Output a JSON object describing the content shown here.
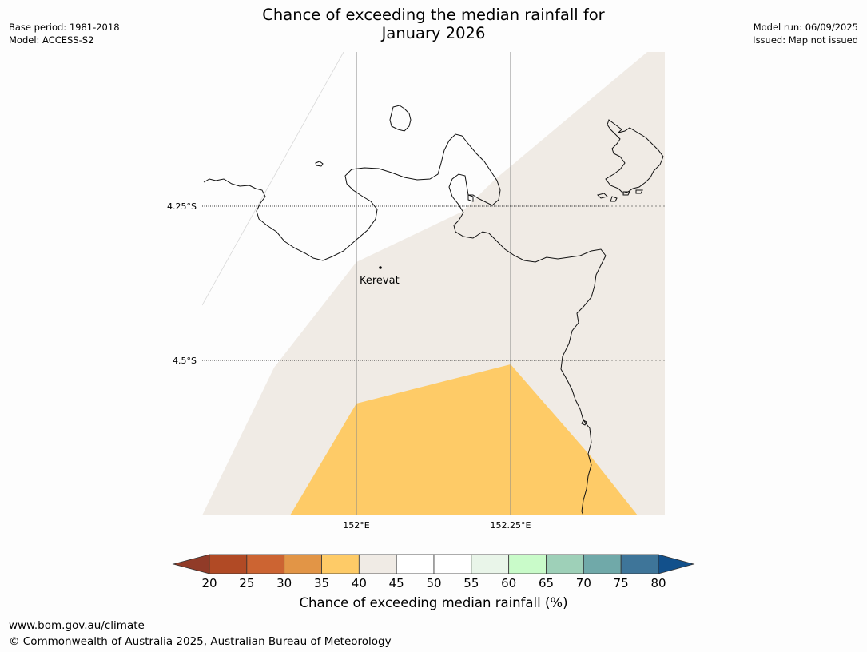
{
  "header": {
    "title_line1": "Chance of exceeding the median rainfall for",
    "title_line2": "January 2026",
    "base_period": "Base period: 1981-2018",
    "model": "Model: ACCESS-S2",
    "model_run": "Model run: 06/09/2025",
    "issued": "Issued: Map not issued"
  },
  "map": {
    "place_label": "Kerevat",
    "lat_labels": [
      "4.25°S",
      "4.5°S"
    ],
    "lon_labels": [
      "152°E",
      "152.25°E"
    ],
    "region_colors": {
      "band_35_40": "#fecb67",
      "band_40_45": "#f0ebe5"
    }
  },
  "colorbar": {
    "tick_labels": [
      "20",
      "25",
      "30",
      "35",
      "40",
      "45",
      "50",
      "55",
      "60",
      "65",
      "70",
      "75",
      "80"
    ],
    "colors": [
      "#b14a25",
      "#cc6432",
      "#e29546",
      "#fecb67",
      "#f0ebe5",
      "#ffffff",
      "#ffffff",
      "#e9f5e9",
      "#c9fbc9",
      "#9ed0b8",
      "#70a9a9",
      "#3e7599"
    ],
    "under_color": "#913b28",
    "over_color": "#12508b",
    "label": "Chance of exceeding median rainfall (%)"
  },
  "footer": {
    "website": "www.bom.gov.au/climate",
    "copyright": "© Commonwealth of Australia 2025, Australian Bureau of Meteorology"
  }
}
